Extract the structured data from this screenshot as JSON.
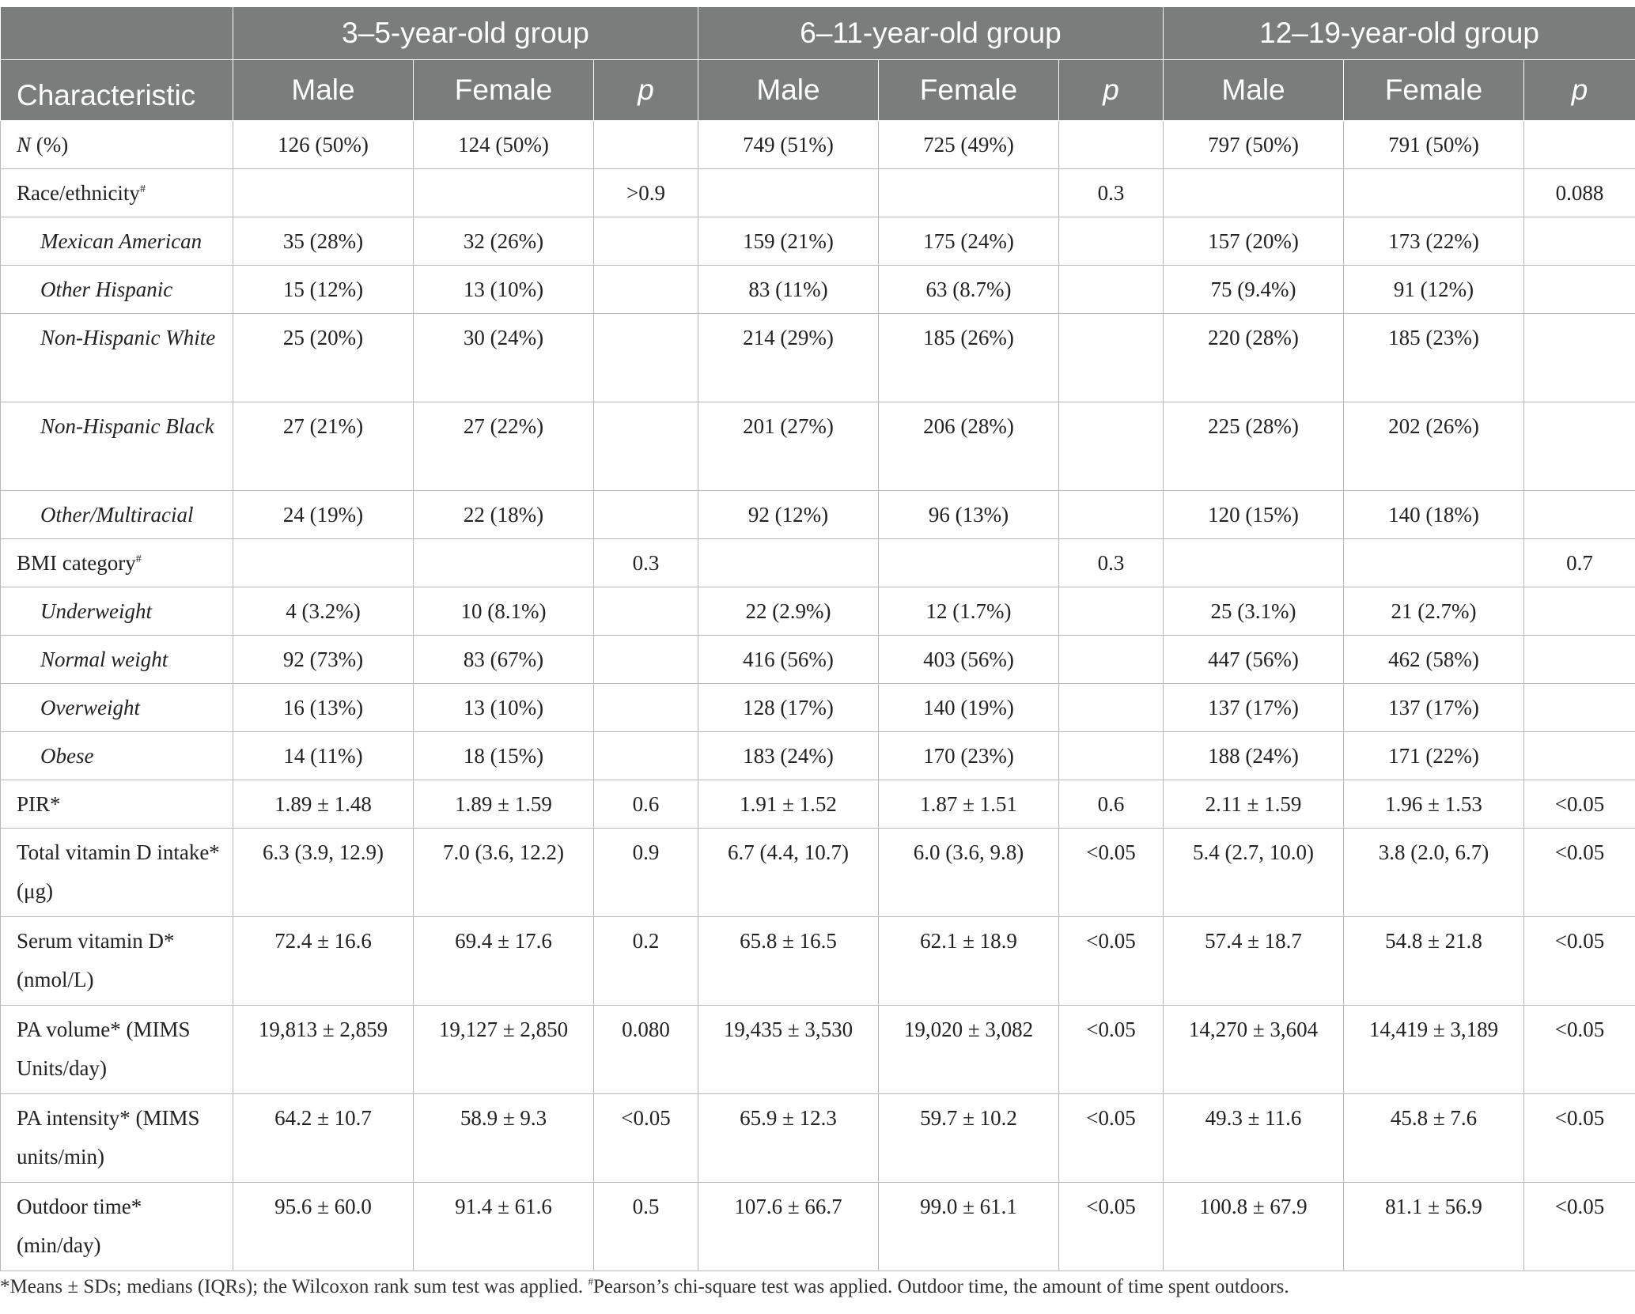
{
  "header": {
    "characteristic": "Characteristic",
    "groups": [
      "3–5-year-old group",
      "6–11-year-old group",
      "12–19-year-old group"
    ],
    "sub": [
      "Male",
      "Female",
      "p",
      "Male",
      "Female",
      "p",
      "Male",
      "Female",
      "p"
    ]
  },
  "rows": [
    {
      "label": "N",
      "label_suffix": " (%)",
      "label_italic_prefix": true,
      "values": [
        "126 (50%)",
        "124 (50%)",
        "",
        "749 (51%)",
        "725 (49%)",
        "",
        "797 (50%)",
        "791 (50%)",
        ""
      ]
    },
    {
      "label": "Race/ethnicity",
      "mark": "#",
      "values": [
        "",
        "",
        ">0.9",
        "",
        "",
        "0.3",
        "",
        "",
        "0.088"
      ]
    },
    {
      "label": "Mexican American",
      "sub": true,
      "values": [
        "35 (28%)",
        "32 (26%)",
        "",
        "159 (21%)",
        "175 (24%)",
        "",
        "157 (20%)",
        "173 (22%)",
        ""
      ]
    },
    {
      "label": "Other Hispanic",
      "sub": true,
      "values": [
        "15 (12%)",
        "13 (10%)",
        "",
        "83 (11%)",
        "63 (8.7%)",
        "",
        "75 (9.4%)",
        "91 (12%)",
        ""
      ]
    },
    {
      "label": "Non-Hispanic White",
      "sub": true,
      "tall": true,
      "values": [
        "25 (20%)",
        "30 (24%)",
        "",
        "214 (29%)",
        "185 (26%)",
        "",
        "220 (28%)",
        "185 (23%)",
        ""
      ]
    },
    {
      "label": "Non-Hispanic Black",
      "sub": true,
      "tall": true,
      "values": [
        "27 (21%)",
        "27 (22%)",
        "",
        "201 (27%)",
        "206 (28%)",
        "",
        "225 (28%)",
        "202 (26%)",
        ""
      ]
    },
    {
      "label": "Other/Multiracial",
      "sub": true,
      "values": [
        "24 (19%)",
        "22 (18%)",
        "",
        "92 (12%)",
        "96 (13%)",
        "",
        "120 (15%)",
        "140 (18%)",
        ""
      ]
    },
    {
      "label": "BMI category",
      "mark": "#",
      "values": [
        "",
        "",
        "0.3",
        "",
        "",
        "0.3",
        "",
        "",
        "0.7"
      ]
    },
    {
      "label": "Underweight",
      "sub": true,
      "values": [
        "4 (3.2%)",
        "10 (8.1%)",
        "",
        "22 (2.9%)",
        "12 (1.7%)",
        "",
        "25 (3.1%)",
        "21 (2.7%)",
        ""
      ]
    },
    {
      "label": "Normal weight",
      "sub": true,
      "values": [
        "92 (73%)",
        "83 (67%)",
        "",
        "416 (56%)",
        "403 (56%)",
        "",
        "447 (56%)",
        "462 (58%)",
        ""
      ]
    },
    {
      "label": "Overweight",
      "sub": true,
      "values": [
        "16 (13%)",
        "13 (10%)",
        "",
        "128 (17%)",
        "140 (19%)",
        "",
        "137 (17%)",
        "137 (17%)",
        ""
      ]
    },
    {
      "label": "Obese",
      "sub": true,
      "values": [
        "14 (11%)",
        "18 (15%)",
        "",
        "183 (24%)",
        "170 (23%)",
        "",
        "188 (24%)",
        "171 (22%)",
        ""
      ]
    },
    {
      "label": "PIR*",
      "values": [
        "1.89 ± 1.48",
        "1.89 ± 1.59",
        "0.6",
        "1.91 ± 1.52",
        "1.87 ± 1.51",
        "0.6",
        "2.11 ± 1.59",
        "1.96 ± 1.53",
        "<0.05"
      ]
    },
    {
      "label": "Total vitamin D intake* (μg)",
      "tall": true,
      "values": [
        "6.3 (3.9, 12.9)",
        "7.0 (3.6, 12.2)",
        "0.9",
        "6.7 (4.4, 10.7)",
        "6.0 (3.6, 9.8)",
        "<0.05",
        "5.4 (2.7, 10.0)",
        "3.8 (2.0, 6.7)",
        "<0.05"
      ]
    },
    {
      "label": "Serum vitamin D* (nmol/L)",
      "tall": true,
      "values": [
        "72.4 ± 16.6",
        "69.4 ± 17.6",
        "0.2",
        "65.8 ± 16.5",
        "62.1 ± 18.9",
        "<0.05",
        "57.4 ± 18.7",
        "54.8 ± 21.8",
        "<0.05"
      ]
    },
    {
      "label": "PA volume* (MIMS Units/day)",
      "tall": true,
      "values": [
        "19,813 ± 2,859",
        "19,127 ± 2,850",
        "0.080",
        "19,435 ± 3,530",
        "19,020 ± 3,082",
        "<0.05",
        "14,270 ± 3,604",
        "14,419 ± 3,189",
        "<0.05"
      ]
    },
    {
      "label": "PA intensity* (MIMS units/min)",
      "tall": true,
      "values": [
        "64.2 ± 10.7",
        "58.9 ± 9.3",
        "<0.05",
        "65.9 ± 12.3",
        "59.7 ± 10.2",
        "<0.05",
        "49.3 ± 11.6",
        "45.8 ± 7.6",
        "<0.05"
      ]
    },
    {
      "label": "Outdoor time* (min/day)",
      "tall": true,
      "values": [
        "95.6 ± 60.0",
        "91.4 ± 61.6",
        "0.5",
        "107.6 ± 66.7",
        "99.0 ± 61.1",
        "<0.05",
        "100.8 ± 67.9",
        "81.1 ± 56.9",
        "<0.05"
      ]
    }
  ],
  "footnote": {
    "part1": "*Means ± SDs; medians (IQRs); the Wilcoxon rank sum test was applied. ",
    "mark": "#",
    "part2": "Pearson’s chi-square test was applied. Outdoor time, the amount of time spent outdoors."
  },
  "colors": {
    "header_bg": "#7b7c7c",
    "header_text": "#ffffff",
    "grid": "#b8b8b8",
    "text": "#222222"
  }
}
